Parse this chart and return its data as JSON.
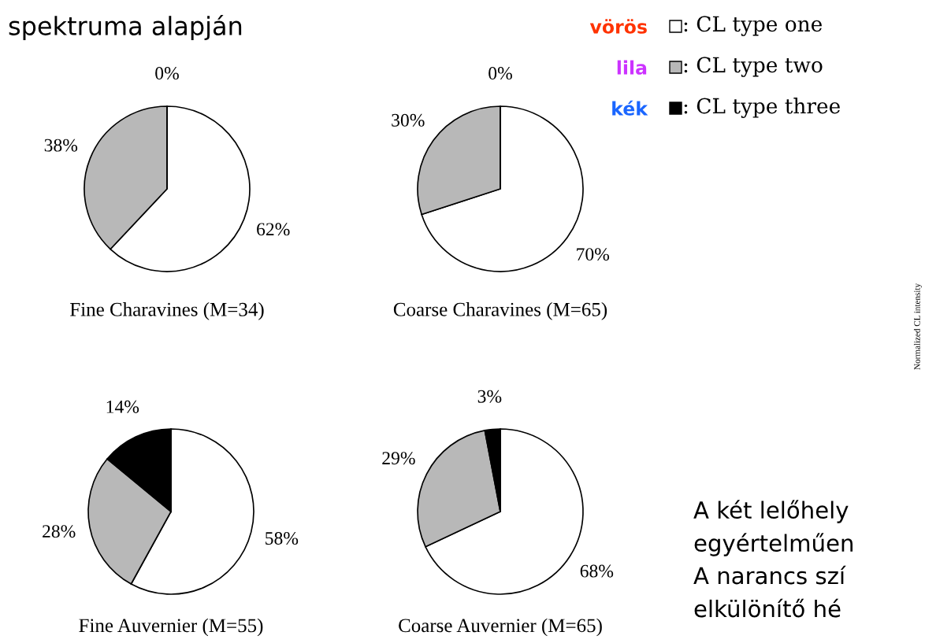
{
  "chart_data": [
    {
      "type": "pie",
      "title": "spektruma alapján",
      "xlabel": "Fine Charavines (M=34)",
      "categories": [
        null,
        null,
        null
      ],
      "values": [
        62,
        38,
        0
      ],
      "colors": [
        "#ffffff",
        "#b8b8b8",
        "#000000"
      ],
      "value_labels": [
        "62%",
        "38%",
        "0%"
      ]
    },
    {
      "type": "pie",
      "xlabel": "Coarse Charavines (M=65)",
      "categories": [
        null,
        null,
        null
      ],
      "values": [
        70,
        30,
        0
      ],
      "colors": [
        "#ffffff",
        "#b8b8b8",
        "#000000"
      ],
      "value_labels": [
        "70%",
        "30%",
        "0%"
      ]
    },
    {
      "type": "pie",
      "xlabel": "Fine Auvernier (M=55)",
      "categories": [
        null,
        null,
        null
      ],
      "values": [
        58,
        28,
        14
      ],
      "colors": [
        "#ffffff",
        "#b8b8b8",
        "#000000"
      ],
      "value_labels": [
        "58%",
        "28%",
        "14%"
      ]
    },
    {
      "type": "pie",
      "xlabel": "Coarse Auvernier (M=65)",
      "categories": [
        null,
        null,
        null
      ],
      "values": [
        68,
        29,
        3
      ],
      "colors": [
        "#ffffff",
        "#b8b8b8",
        "#000000"
      ],
      "value_labels": [
        "68%",
        "29%",
        "3%"
      ]
    },
    {
      "type": "other",
      "categories": [
        ": CL type one",
        ": CL type two",
        ": CL type three"
      ],
      "colors": [
        "#ffffff",
        "#b8b8b8",
        "#000000"
      ]
    },
    {
      "type": "other",
      "categories": [
        "vörös",
        "lila",
        "kék"
      ],
      "colors": [
        "#ff3300",
        "#cc33ff",
        "#1a66ff"
      ]
    },
    {
      "type": "other",
      "ylabel": "Normalized CL intensity",
      "annotations": [
        "A két lelőhely",
        "egyértelműen",
        "A narancs szí",
        "elkülönítő hé"
      ]
    }
  ]
}
